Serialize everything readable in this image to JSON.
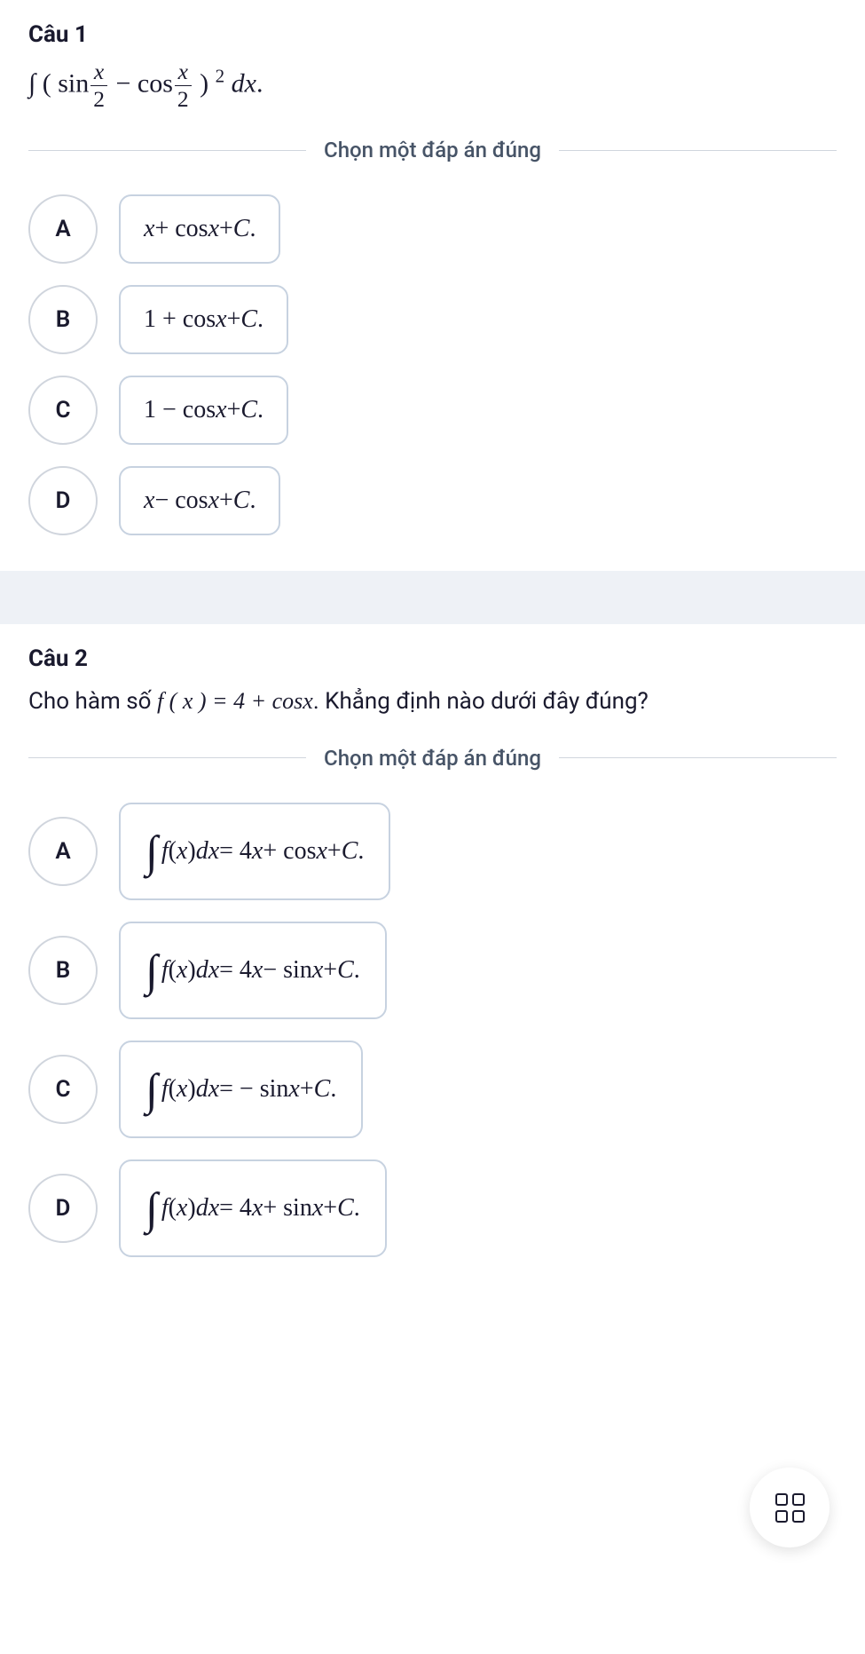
{
  "q1": {
    "title": "Câu 1",
    "divider": "Chọn một đáp án đúng",
    "options": {
      "A": {
        "letter": "A"
      },
      "B": {
        "letter": "B"
      },
      "C": {
        "letter": "C"
      },
      "D": {
        "letter": "D"
      }
    }
  },
  "q2": {
    "title": "Câu 2",
    "text_prefix": "Cho hàm số ",
    "text_suffix": ". Khẳng định nào dưới đây đúng?",
    "divider": "Chọn một đáp án đúng",
    "options": {
      "A": {
        "letter": "A"
      },
      "B": {
        "letter": "B"
      },
      "C": {
        "letter": "C"
      },
      "D": {
        "letter": "D"
      }
    }
  },
  "math": {
    "q1_expr_html": "∫ ( sin<span class=\"frac\"><span class=\"num math-it\">x</span><span class=\"den\">2</span></span> − cos<span class=\"frac\"><span class=\"num math-it\">x</span><span class=\"den\">2</span></span> ) <span class=\"sup\">2</span> <span class=\"math-it\">dx</span>.",
    "q1_A": "<span class=\"math-it\">x</span> + cos<span class=\"math-it\">x</span> + <span class=\"math-it\">C</span>.",
    "q1_B": "1 + cos<span class=\"math-it\">x</span> + <span class=\"math-it\">C</span>.",
    "q1_C": "1 − cos<span class=\"math-it\">x</span> + <span class=\"math-it\">C</span>.",
    "q1_D": "<span class=\"math-it\">x</span> − cos<span class=\"math-it\">x</span> + <span class=\"math-it\">C</span>.",
    "q2_fx": "<span class=\"math-it\">f</span> ( <span class=\"math-it\">x</span> ) = 4 + cos<span class=\"math-it\">x</span>",
    "q2_A": "<span class=\"int-sym\">∫</span><span class=\"math-it\">f</span> ( <span class=\"math-it\">x</span> ) <span class=\"math-it\">dx</span> = 4<span class=\"math-it\">x</span> + cos<span class=\"math-it\">x</span> + <span class=\"math-it\">C</span>.",
    "q2_B": "<span class=\"int-sym\">∫</span><span class=\"math-it\">f</span> ( <span class=\"math-it\">x</span> ) <span class=\"math-it\">dx</span> = 4<span class=\"math-it\">x</span> − sin<span class=\"math-it\">x</span> + <span class=\"math-it\">C</span>.",
    "q2_C": "<span class=\"int-sym\">∫</span><span class=\"math-it\">f</span> ( <span class=\"math-it\">x</span> ) <span class=\"math-it\">dx</span> = − sin<span class=\"math-it\">x</span> + <span class=\"math-it\">C</span>.",
    "q2_D": "<span class=\"int-sym\">∫</span><span class=\"math-it\">f</span> ( <span class=\"math-it\">x</span> ) <span class=\"math-it\">dx</span> = 4<span class=\"math-it\">x</span> + sin<span class=\"math-it\">x</span> + <span class=\"math-it\">C</span>."
  },
  "colors": {
    "border": "#d0d5dd",
    "option_border": "#c7d2e0",
    "text": "#1a1a2e",
    "muted": "#475467",
    "spacer_bg": "#eef1f6"
  }
}
